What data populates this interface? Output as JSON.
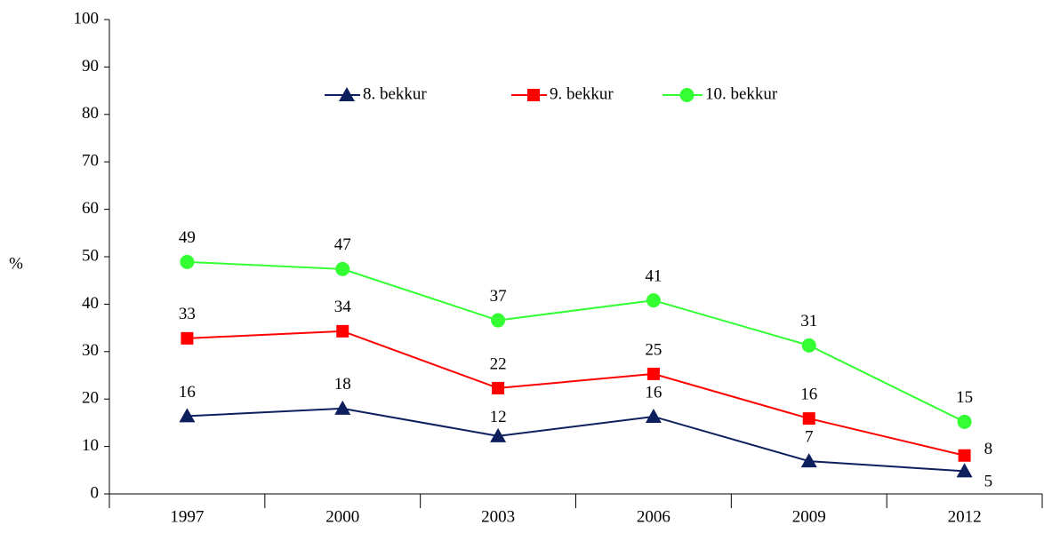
{
  "chart_data": {
    "type": "line",
    "y_label": "%",
    "categories": [
      "1997",
      "2000",
      "2003",
      "2006",
      "2009",
      "2012"
    ],
    "series": [
      {
        "name": "8. bekkur",
        "color": "#0d1f5c",
        "marker": "triangle",
        "values": [
          16.4,
          18.0,
          12.2,
          16.3,
          6.9,
          4.8
        ],
        "value_labels": [
          "16",
          "18",
          "12",
          "16",
          "7",
          "5"
        ]
      },
      {
        "name": "9. bekkur",
        "color": "#ff0000",
        "marker": "square",
        "values": [
          32.8,
          34.3,
          22.3,
          25.3,
          15.9,
          8.1
        ],
        "value_labels": [
          "33",
          "34",
          "22",
          "25",
          "16",
          "8"
        ]
      },
      {
        "name": "10. bekkur",
        "color": "#33ff33",
        "marker": "circle",
        "values": [
          48.9,
          47.4,
          36.6,
          40.8,
          31.3,
          15.2
        ],
        "value_labels": [
          "49",
          "47",
          "37",
          "41",
          "31",
          "15"
        ]
      }
    ],
    "ylim": [
      0,
      100
    ],
    "yticks": [
      0,
      10,
      20,
      30,
      40,
      50,
      60,
      70,
      80,
      90,
      100
    ],
    "legend": "top"
  }
}
